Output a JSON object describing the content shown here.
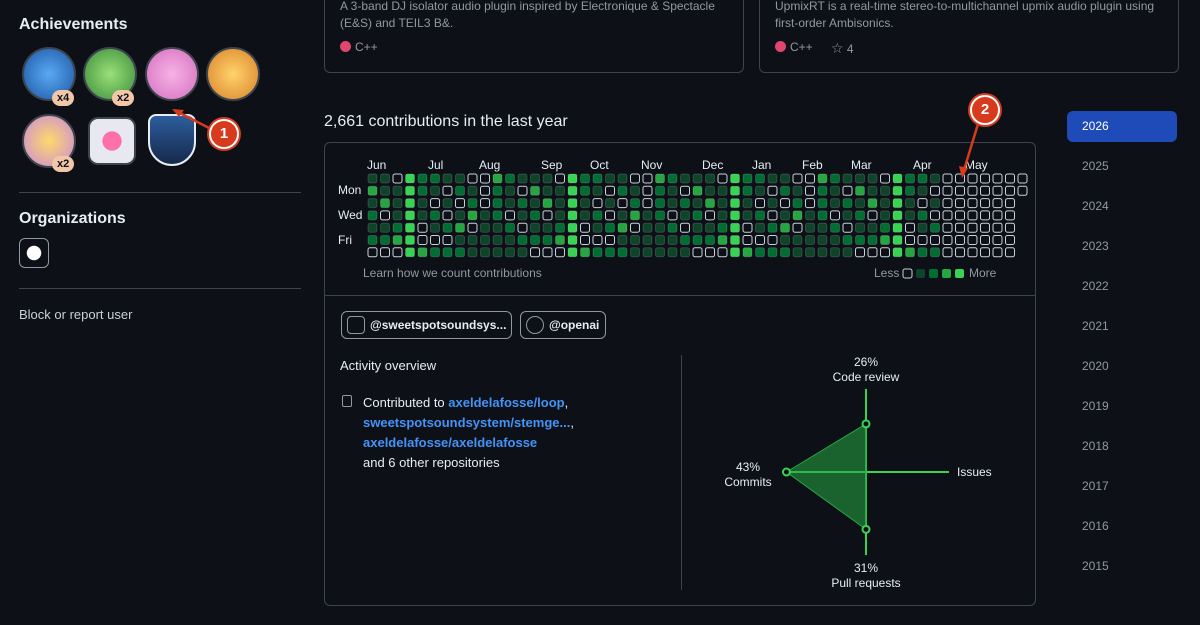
{
  "sidebar": {
    "achievements_title": "Achievements",
    "badge_counts": [
      "x4",
      "x2",
      "x2"
    ],
    "organizations_title": "Organizations",
    "block_link": "Block or report user"
  },
  "repo_cards": [
    {
      "description": "A 3-band DJ isolator audio plugin inspired by Electronique & Spectacle (E&S) and TEIL3 B&.",
      "language": "C++"
    },
    {
      "description": "UpmixRT is a real-time stereo-to-multichannel upmix audio plugin using first-order Ambisonics.",
      "language": "C++",
      "stars": "4"
    }
  ],
  "contributions": {
    "heading": "2,661 contributions in the last year",
    "months": [
      "Jun",
      "Jul",
      "Aug",
      "Sep",
      "Oct",
      "Nov",
      "Dec",
      "Jan",
      "Feb",
      "Mar",
      "Apr",
      "May"
    ],
    "days": [
      "Mon",
      "Wed",
      "Fri"
    ],
    "learn_link": "Learn how we count contributions",
    "legend_less": "Less",
    "legend_more": "More"
  },
  "organization_chips": [
    "@sweetspotsoundsys...",
    "@openai"
  ],
  "activity_overview": {
    "title": "Activity overview",
    "contributed_prefix": "Contributed to",
    "repos": [
      "axeldelafosse/loop",
      "sweetspotsoundsystem/stemge...",
      "axeldelafosse/axeldelafosse"
    ],
    "others": "and 6 other repositories",
    "axes": [
      {
        "name": "Code review",
        "value": 26,
        "value_label": "26%"
      },
      {
        "name": "Issues"
      },
      {
        "name": "Pull requests",
        "value": 31,
        "value_label": "31%"
      },
      {
        "name": "Commits",
        "value": 43,
        "value_label": "43%"
      }
    ]
  },
  "years": [
    "2026",
    "2025",
    "2024",
    "2023",
    "2022",
    "2021",
    "2020",
    "2019",
    "2018",
    "2017",
    "2016",
    "2015"
  ],
  "annotations": [
    "1",
    "2"
  ]
}
